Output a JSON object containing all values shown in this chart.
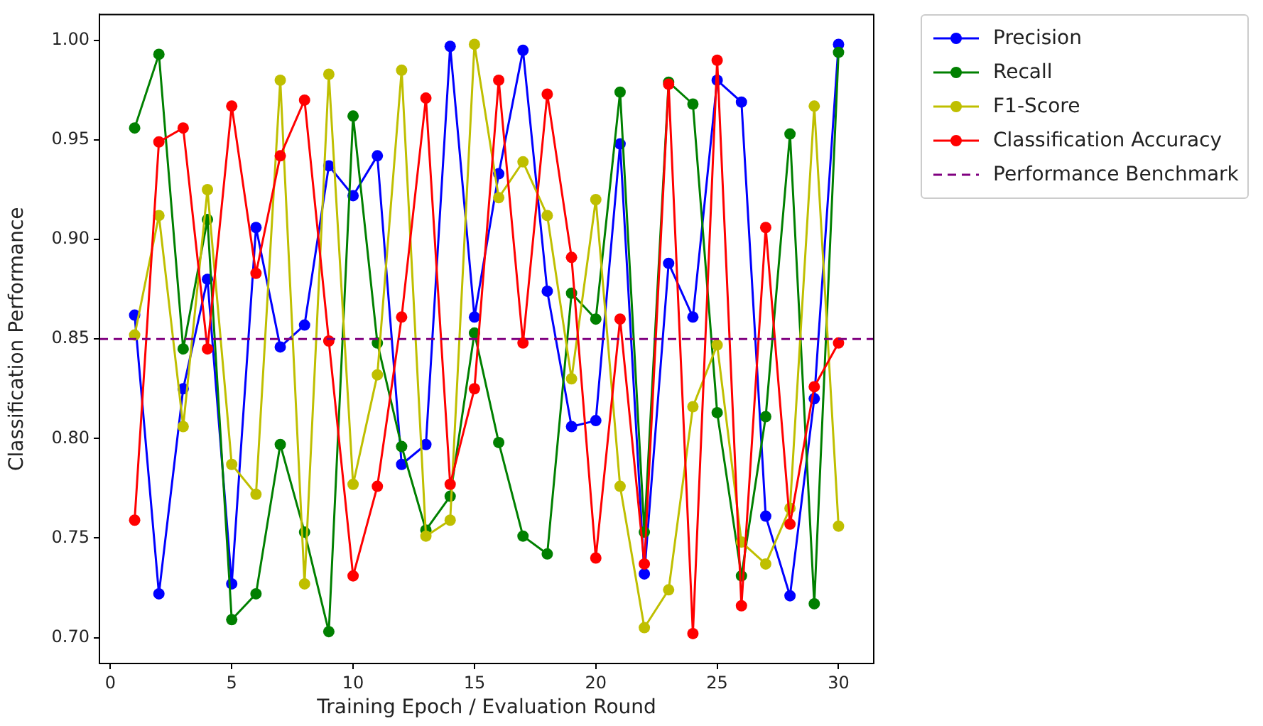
{
  "chart_data": {
    "type": "line",
    "xlabel": "Training Epoch / Evaluation Round",
    "ylabel": "Classification Performance",
    "x": [
      1,
      2,
      3,
      4,
      5,
      6,
      7,
      8,
      9,
      10,
      11,
      12,
      13,
      14,
      15,
      16,
      17,
      18,
      19,
      20,
      21,
      22,
      23,
      24,
      25,
      26,
      27,
      28,
      29,
      30
    ],
    "series": [
      {
        "name": "Precision",
        "color": "#0000ff",
        "values": [
          0.862,
          0.722,
          0.825,
          0.88,
          0.727,
          0.906,
          0.846,
          0.857,
          0.937,
          0.922,
          0.942,
          0.787,
          0.797,
          0.997,
          0.861,
          0.933,
          0.995,
          0.874,
          0.806,
          0.809,
          0.948,
          0.732,
          0.888,
          0.861,
          0.98,
          0.969,
          0.761,
          0.721,
          0.82,
          0.998
        ]
      },
      {
        "name": "Recall",
        "color": "#008000",
        "values": [
          0.956,
          0.993,
          0.845,
          0.91,
          0.709,
          0.722,
          0.797,
          0.753,
          0.703,
          0.962,
          0.848,
          0.796,
          0.754,
          0.771,
          0.853,
          0.798,
          0.751,
          0.742,
          0.873,
          0.86,
          0.974,
          0.753,
          0.979,
          0.968,
          0.813,
          0.731,
          0.811,
          0.953,
          0.717,
          0.994
        ]
      },
      {
        "name": "F1-Score",
        "color": "#bfbf00",
        "values": [
          0.852,
          0.912,
          0.806,
          0.925,
          0.787,
          0.772,
          0.98,
          0.727,
          0.983,
          0.777,
          0.832,
          0.985,
          0.751,
          0.759,
          0.998,
          0.921,
          0.939,
          0.912,
          0.83,
          0.92,
          0.776,
          0.705,
          0.724,
          0.816,
          0.847,
          0.748,
          0.737,
          0.765,
          0.967,
          0.756
        ]
      },
      {
        "name": "Classification Accuracy",
        "color": "#ff0000",
        "values": [
          0.759,
          0.949,
          0.956,
          0.845,
          0.967,
          0.883,
          0.942,
          0.97,
          0.849,
          0.731,
          0.776,
          0.861,
          0.971,
          0.777,
          0.825,
          0.98,
          0.848,
          0.973,
          0.891,
          0.74,
          0.86,
          0.737,
          0.978,
          0.702,
          0.99,
          0.716,
          0.906,
          0.757,
          0.826,
          0.848
        ]
      }
    ],
    "ref_lines": [
      {
        "axis": "y",
        "value": 0.85,
        "label": "Performance Benchmark",
        "color": "#800080",
        "line_style": "dashed"
      }
    ],
    "xlim": [
      -0.45,
      31.45
    ],
    "xticks": [
      0,
      5,
      10,
      15,
      20,
      25,
      30
    ],
    "ylim": [
      0.687,
      1.013
    ],
    "yticks": [
      {
        "value": 0.7,
        "label": "0.70"
      },
      {
        "value": 0.75,
        "label": "0.75"
      },
      {
        "value": 0.8,
        "label": "0.80"
      },
      {
        "value": 0.85,
        "label": "0.85"
      },
      {
        "value": 0.9,
        "label": "0.90"
      },
      {
        "value": 0.95,
        "label": "0.95"
      },
      {
        "value": 1.0,
        "label": "1.00"
      }
    ],
    "marker": "circle",
    "line_style": "solid",
    "grid": false,
    "legend": "right"
  }
}
